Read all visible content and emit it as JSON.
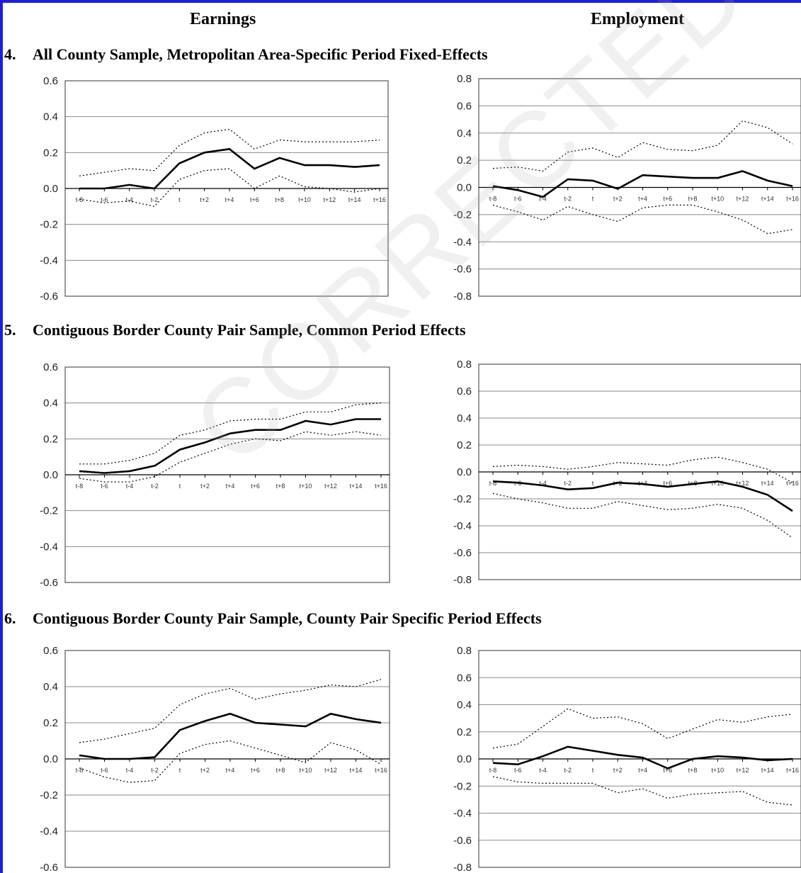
{
  "header": {
    "left_column": "Earnings",
    "right_column": "Employment",
    "watermark": "CORRECTED PROOF"
  },
  "sections": [
    {
      "number": "4.",
      "title": "All County Sample, Metropolitan Area-Specific Period Fixed-Effects"
    },
    {
      "number": "5.",
      "title": "Contiguous Border County Pair Sample, Common Period Effects"
    },
    {
      "number": "6.",
      "title": "Contiguous Border County Pair Sample, County Pair Specific Period Effects"
    }
  ],
  "colors": {
    "frame": "#1d1de0",
    "line": "#000000",
    "grid": "#8a8a8a"
  },
  "chart_data": [
    {
      "type": "line",
      "section": "4",
      "panel": "Earnings",
      "ylim": [
        -0.6,
        0.6
      ],
      "ystep": 0.2,
      "grid": true,
      "legend": "none",
      "x": [
        "t-8",
        "t-6",
        "t-4",
        "t-2",
        "t",
        "t+2",
        "t+4",
        "t+6",
        "t+8",
        "t+10",
        "t+12",
        "t+14",
        "t+16"
      ],
      "series": [
        {
          "style": "solid",
          "values": [
            0.0,
            0.0,
            0.02,
            0.0,
            0.14,
            0.2,
            0.22,
            0.11,
            0.17,
            0.13,
            0.13,
            0.12,
            0.13
          ]
        },
        {
          "style": "dotted",
          "values": [
            0.07,
            0.09,
            0.11,
            0.1,
            0.24,
            0.31,
            0.33,
            0.22,
            0.27,
            0.26,
            0.26,
            0.26,
            0.27
          ]
        },
        {
          "style": "dotted",
          "values": [
            -0.06,
            -0.08,
            -0.07,
            -0.1,
            0.05,
            0.1,
            0.11,
            0.0,
            0.07,
            0.01,
            0.0,
            -0.02,
            0.0
          ]
        }
      ]
    },
    {
      "type": "line",
      "section": "4",
      "panel": "Employment",
      "ylim": [
        -0.8,
        0.8
      ],
      "ystep": 0.2,
      "grid": true,
      "legend": "none",
      "x": [
        "t-8",
        "t-6",
        "t-4",
        "t-2",
        "t",
        "t+2",
        "t+4",
        "t+6",
        "t+8",
        "t+10",
        "t+12",
        "t+14",
        "t+16"
      ],
      "series": [
        {
          "style": "solid",
          "values": [
            0.01,
            -0.02,
            -0.07,
            0.06,
            0.05,
            -0.01,
            0.09,
            0.08,
            0.07,
            0.07,
            0.12,
            0.05,
            0.01
          ]
        },
        {
          "style": "dotted",
          "values": [
            0.14,
            0.15,
            0.12,
            0.26,
            0.29,
            0.22,
            0.33,
            0.28,
            0.27,
            0.31,
            0.49,
            0.44,
            0.32
          ]
        },
        {
          "style": "dotted",
          "values": [
            -0.13,
            -0.18,
            -0.24,
            -0.14,
            -0.2,
            -0.25,
            -0.15,
            -0.13,
            -0.13,
            -0.18,
            -0.24,
            -0.34,
            -0.31
          ]
        }
      ]
    },
    {
      "type": "line",
      "section": "5",
      "panel": "Earnings",
      "ylim": [
        -0.6,
        0.6
      ],
      "ystep": 0.2,
      "grid": true,
      "legend": "none",
      "x": [
        "t-8",
        "t-6",
        "t-4",
        "t-2",
        "t",
        "t+2",
        "t+4",
        "t+6",
        "t+8",
        "t+10",
        "t+12",
        "t+14",
        "t+16"
      ],
      "series": [
        {
          "style": "solid",
          "values": [
            0.02,
            0.01,
            0.02,
            0.05,
            0.14,
            0.18,
            0.23,
            0.25,
            0.25,
            0.3,
            0.28,
            0.31,
            0.31
          ]
        },
        {
          "style": "dotted",
          "values": [
            0.06,
            0.06,
            0.08,
            0.12,
            0.22,
            0.25,
            0.3,
            0.31,
            0.31,
            0.35,
            0.35,
            0.39,
            0.4
          ]
        },
        {
          "style": "dotted",
          "values": [
            -0.02,
            -0.04,
            -0.04,
            -0.01,
            0.07,
            0.12,
            0.17,
            0.2,
            0.19,
            0.24,
            0.22,
            0.24,
            0.22
          ]
        }
      ]
    },
    {
      "type": "line",
      "section": "5",
      "panel": "Employment",
      "ylim": [
        -0.8,
        0.8
      ],
      "ystep": 0.2,
      "grid": true,
      "legend": "none",
      "x": [
        "t-8",
        "t-6",
        "t-4",
        "t-2",
        "t",
        "t+2",
        "t+4",
        "t+6",
        "t+8",
        "t+10",
        "t+12",
        "t+14",
        "t+16"
      ],
      "series": [
        {
          "style": "solid",
          "values": [
            -0.07,
            -0.08,
            -0.1,
            -0.13,
            -0.12,
            -0.08,
            -0.09,
            -0.11,
            -0.09,
            -0.07,
            -0.11,
            -0.17,
            -0.29
          ]
        },
        {
          "style": "dotted",
          "values": [
            0.04,
            0.05,
            0.04,
            0.02,
            0.04,
            0.07,
            0.06,
            0.05,
            0.09,
            0.11,
            0.07,
            0.02,
            -0.08
          ]
        },
        {
          "style": "dotted",
          "values": [
            -0.16,
            -0.2,
            -0.23,
            -0.27,
            -0.27,
            -0.22,
            -0.25,
            -0.28,
            -0.27,
            -0.24,
            -0.27,
            -0.36,
            -0.49
          ]
        }
      ]
    },
    {
      "type": "line",
      "section": "6",
      "panel": "Earnings",
      "ylim": [
        -0.6,
        0.6
      ],
      "ystep": 0.2,
      "grid": true,
      "legend": "none",
      "x": [
        "t-8",
        "t-6",
        "t-4",
        "t-2",
        "t",
        "t+2",
        "t+4",
        "t+6",
        "t+8",
        "t+10",
        "t+12",
        "t+14",
        "t+16"
      ],
      "series": [
        {
          "style": "solid",
          "values": [
            0.02,
            0.0,
            0.0,
            0.01,
            0.16,
            0.21,
            0.25,
            0.2,
            0.19,
            0.18,
            0.25,
            0.22,
            0.2
          ]
        },
        {
          "style": "dotted",
          "values": [
            0.09,
            0.11,
            0.14,
            0.17,
            0.3,
            0.36,
            0.39,
            0.33,
            0.36,
            0.38,
            0.41,
            0.4,
            0.44
          ]
        },
        {
          "style": "dotted",
          "values": [
            -0.05,
            -0.1,
            -0.13,
            -0.12,
            0.03,
            0.08,
            0.1,
            0.06,
            0.02,
            -0.02,
            0.09,
            0.05,
            -0.03
          ]
        }
      ]
    },
    {
      "type": "line",
      "section": "6",
      "panel": "Employment",
      "ylim": [
        -0.8,
        0.8
      ],
      "ystep": 0.2,
      "grid": true,
      "legend": "none",
      "x": [
        "t-8",
        "t-6",
        "t-4",
        "t-2",
        "t",
        "t+2",
        "t+4",
        "t+6",
        "t+8",
        "t+10",
        "t+12",
        "t+14",
        "t+16"
      ],
      "series": [
        {
          "style": "solid",
          "values": [
            -0.03,
            -0.04,
            0.02,
            0.09,
            0.06,
            0.03,
            0.01,
            -0.07,
            0.0,
            0.02,
            0.01,
            -0.01,
            0.0
          ]
        },
        {
          "style": "dotted",
          "values": [
            0.08,
            0.11,
            0.24,
            0.37,
            0.3,
            0.31,
            0.26,
            0.15,
            0.22,
            0.29,
            0.27,
            0.31,
            0.33
          ]
        },
        {
          "style": "dotted",
          "values": [
            -0.13,
            -0.17,
            -0.18,
            -0.18,
            -0.18,
            -0.25,
            -0.22,
            -0.29,
            -0.26,
            -0.25,
            -0.24,
            -0.32,
            -0.34
          ]
        }
      ]
    }
  ]
}
